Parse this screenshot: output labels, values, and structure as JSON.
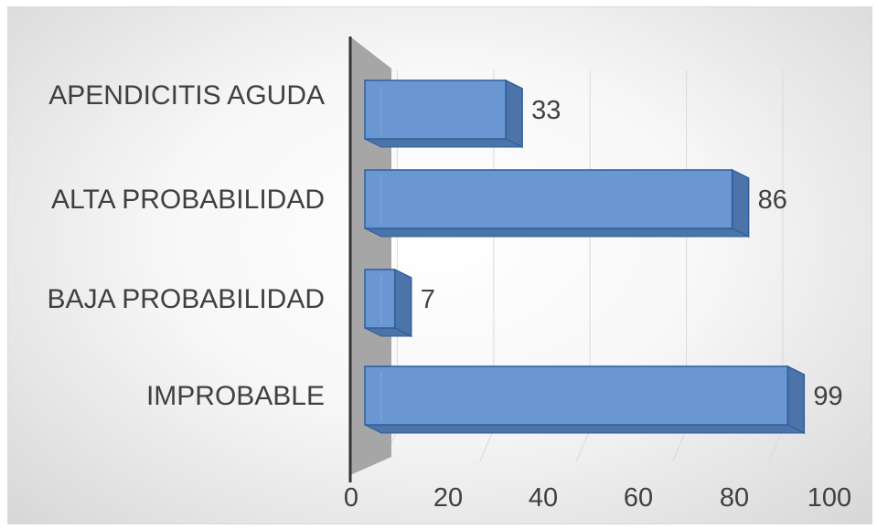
{
  "chart_data": {
    "type": "bar",
    "orientation": "horizontal",
    "categories": [
      "APENDICITIS AGUDA",
      "ALTA PROBABILIDAD",
      "BAJA PROBABILIDAD",
      "IMPROBABLE"
    ],
    "values": [
      33,
      86,
      7,
      99
    ],
    "data_labels": [
      "33",
      "86",
      "7",
      "99"
    ],
    "xlim": [
      0,
      100
    ],
    "xticks": [
      "0",
      "20",
      "40",
      "60",
      "80",
      "100"
    ],
    "grid": true,
    "legend": "none",
    "style": "3d",
    "colors": {
      "bar_front": "#6a97d1",
      "bar_edge": "#2e5d9e",
      "bar_side": "#4d74a8",
      "bar_top": "#8fb3e2",
      "wall": "#a6a6a6",
      "axis": "#333333",
      "gridline": "#d9d9d9"
    }
  }
}
